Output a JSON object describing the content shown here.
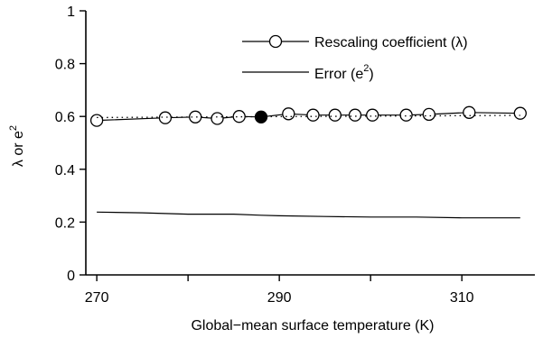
{
  "chart_data": {
    "type": "line",
    "xlabel": "Global−mean surface temperature (K)",
    "ylabel": {
      "base": "λ or e",
      "sup": "2"
    },
    "xlim": [
      268.8,
      318
    ],
    "ylim": [
      0,
      1
    ],
    "x_ticks": [
      270,
      290,
      310
    ],
    "x_minor_ticks": [
      280,
      300
    ],
    "y_ticks": [
      0,
      0.2,
      0.4,
      0.6,
      0.8,
      1
    ],
    "y_tick_labels": [
      "0",
      "0.2",
      "0.4",
      "0.6",
      "0.8",
      "1"
    ],
    "legend_position": "top-right",
    "series": [
      {
        "key": "lambda",
        "name": "Rescaling coefficient (λ)",
        "style": "solid line with open circle markers",
        "color": "#000000",
        "x": [
          270,
          277.5,
          280.8,
          283.2,
          285.6,
          288,
          291,
          293.7,
          296.1,
          298.3,
          300.2,
          303.9,
          306.4,
          310.8,
          316.4
        ],
        "y": [
          0.585,
          0.595,
          0.598,
          0.592,
          0.6,
          0.598,
          0.61,
          0.605,
          0.605,
          0.605,
          0.605,
          0.605,
          0.608,
          0.615,
          0.612
        ],
        "highlight_index": 5
      },
      {
        "key": "lambda_fit",
        "name": "",
        "style": "dotted line",
        "color": "#000000",
        "x": [
          270,
          316.4
        ],
        "y": [
          0.596,
          0.604
        ]
      },
      {
        "key": "error",
        "name": "Error (e²)",
        "legend_base": "Error (e",
        "legend_sup": "2",
        "legend_tail": ")",
        "style": "solid line",
        "color": "#000000",
        "x": [
          270,
          275,
          280,
          285,
          288,
          290,
          295,
          300,
          305,
          310,
          316.4
        ],
        "y": [
          0.238,
          0.235,
          0.23,
          0.23,
          0.226,
          0.224,
          0.221,
          0.219,
          0.219,
          0.216,
          0.216
        ]
      }
    ]
  }
}
